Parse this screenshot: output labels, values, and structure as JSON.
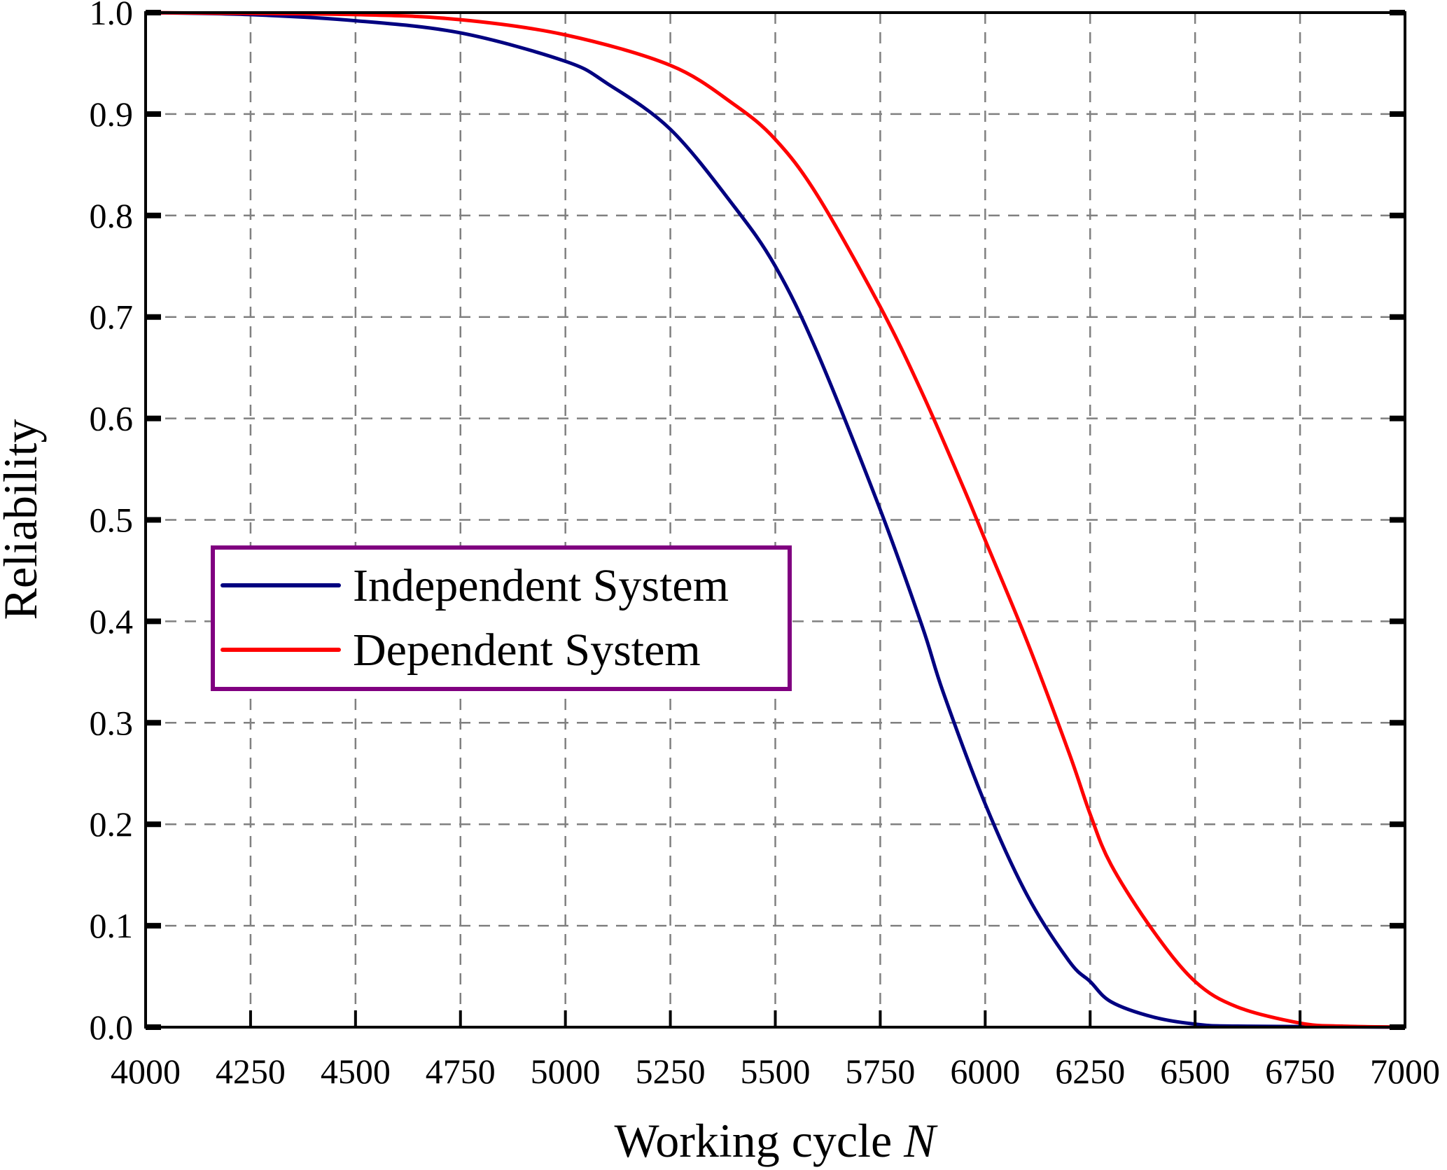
{
  "chart_data": {
    "type": "line",
    "title": "",
    "xlabel": "Working cycle",
    "xlabel_italic": "N",
    "ylabel": "Reliability",
    "xlim": [
      4000,
      7000
    ],
    "ylim": [
      0,
      1
    ],
    "grid": true,
    "legend_position": "center-left",
    "x_ticks": [
      4000,
      4250,
      4500,
      4750,
      5000,
      5250,
      5500,
      5750,
      6000,
      6250,
      6500,
      6750,
      7000
    ],
    "x_tick_labels": [
      "4000",
      "4250",
      "4500",
      "4750",
      "5000",
      "5250",
      "5500",
      "5750",
      "6000",
      "6250",
      "6500",
      "6750",
      "7000"
    ],
    "y_ticks": [
      0,
      0.1,
      0.2,
      0.3,
      0.4,
      0.5,
      0.6,
      0.7,
      0.8,
      0.9,
      1.0
    ],
    "y_tick_labels": [
      "0.0",
      "0.1",
      "0.2",
      "0.3",
      "0.4",
      "0.5",
      "0.6",
      "0.7",
      "0.8",
      "0.9",
      "1.0"
    ],
    "legend_border_color": "#800080",
    "series": [
      {
        "name": "Independent System",
        "color": "#000080",
        "x": [
          4000,
          4250,
          4500,
          4750,
          5000,
          5100,
          5250,
          5400,
          5500,
          5600,
          5750,
          5850,
          5900,
          6000,
          6100,
          6200,
          6250,
          6300,
          6400,
          6500,
          6600,
          7000
        ],
        "y": [
          1.0,
          0.998,
          0.992,
          0.98,
          0.952,
          0.93,
          0.885,
          0.81,
          0.75,
          0.665,
          0.51,
          0.395,
          0.33,
          0.22,
          0.13,
          0.065,
          0.045,
          0.025,
          0.01,
          0.003,
          0.001,
          0.0
        ]
      },
      {
        "name": "Dependent System",
        "color": "#ff0000",
        "x": [
          4000,
          4500,
          4750,
          5000,
          5250,
          5400,
          5500,
          5600,
          5750,
          5850,
          5950,
          6000,
          6100,
          6200,
          6250,
          6300,
          6400,
          6500,
          6600,
          6750,
          6850,
          7000
        ],
        "y": [
          1.0,
          0.998,
          0.993,
          0.978,
          0.948,
          0.91,
          0.875,
          0.82,
          0.71,
          0.625,
          0.53,
          0.48,
          0.38,
          0.27,
          0.21,
          0.16,
          0.095,
          0.045,
          0.02,
          0.004,
          0.001,
          0.0
        ]
      }
    ]
  }
}
